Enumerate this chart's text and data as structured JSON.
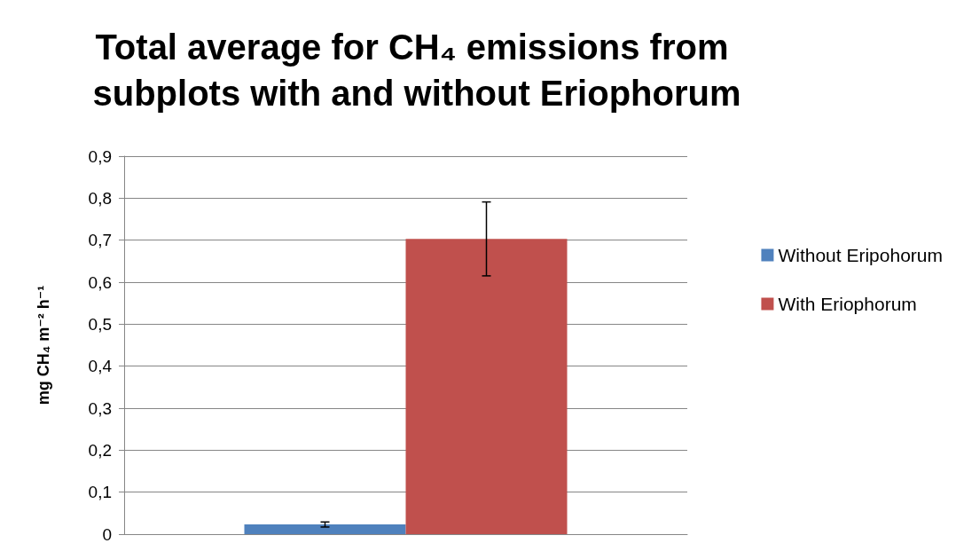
{
  "chart_data": {
    "type": "bar",
    "title": "Total average for CH₄ emissions from subplots with and without Eriophorum",
    "ylabel": "mg CH₄ m⁻² h⁻¹",
    "categories": [
      null
    ],
    "series": [
      {
        "name": "Without Eripohorum",
        "color": "#4f81bd",
        "values": [
          0.023
        ],
        "errors": [
          0.006
        ]
      },
      {
        "name": "With Eriophorum",
        "color": "#c0504d",
        "values": [
          0.703
        ],
        "errors": [
          0.088
        ]
      }
    ],
    "ylim": [
      0,
      0.9
    ],
    "yticks": [
      0,
      {
        "value": 0.1,
        "label": "0,1"
      },
      {
        "value": 0.2,
        "label": "0,2"
      },
      {
        "value": 0.3,
        "label": "0,3"
      },
      {
        "value": 0.4,
        "label": "0,4"
      },
      {
        "value": 0.5,
        "label": "0,5"
      },
      {
        "value": 0.6,
        "label": "0,6"
      },
      {
        "value": 0.7,
        "label": "0,7"
      },
      {
        "value": 0.8,
        "label": "0,8"
      },
      {
        "value": 0.9,
        "label": "0,9"
      }
    ],
    "grid": "y",
    "legend": "right"
  }
}
